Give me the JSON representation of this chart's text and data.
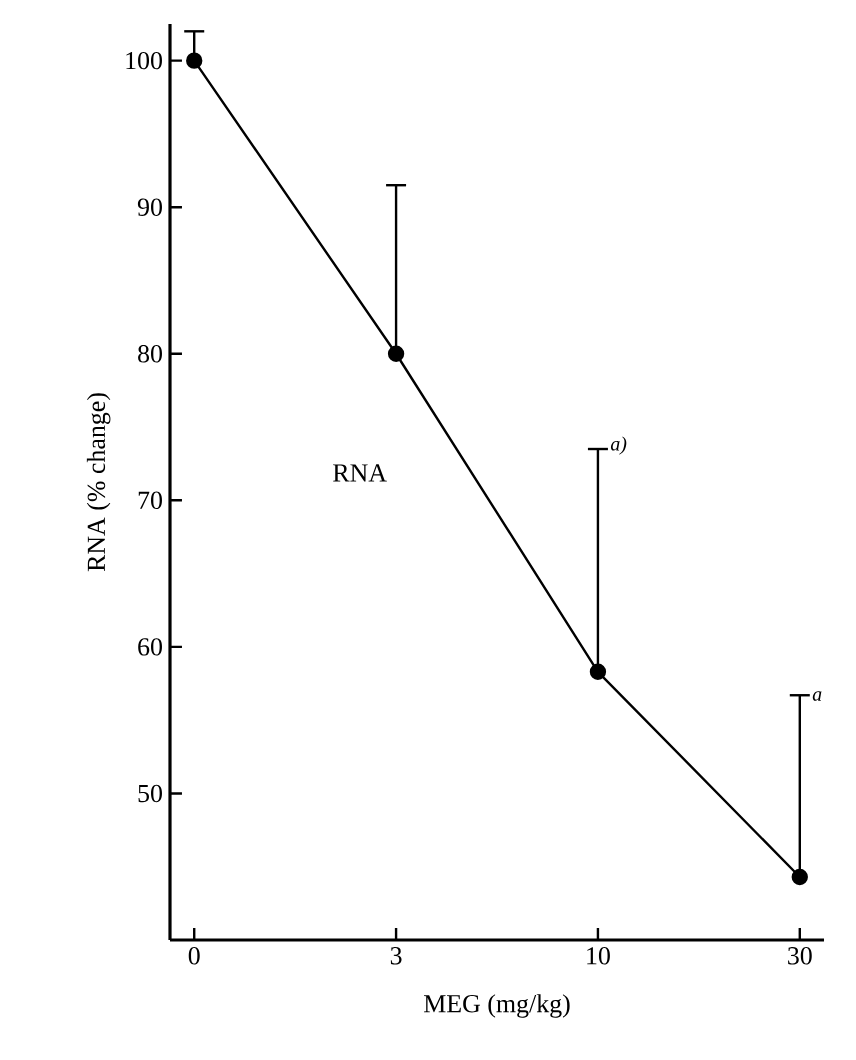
{
  "chart_data": {
    "type": "line",
    "xlabel": "MEG (mg/kg)",
    "ylabel": "RNA (% change)",
    "categories": [
      "0",
      "3",
      "10",
      "30"
    ],
    "series": [
      {
        "name": "RNA",
        "color": "#000000",
        "values": [
          100,
          80,
          58.3,
          44.3
        ],
        "errors": [
          [
            100,
            102
          ],
          [
            80,
            91.5
          ],
          [
            58.3,
            73.5
          ],
          [
            44.3,
            56.7
          ]
        ]
      }
    ],
    "ylim": [
      40,
      102.5
    ],
    "yticks": [
      50,
      60,
      70,
      80,
      90,
      100
    ],
    "marker": "circle",
    "line_style": "solid",
    "legend": false,
    "grid": false,
    "annotations": [
      {
        "text": "a)",
        "x": "10",
        "y": 73.5
      },
      {
        "text": "a",
        "x": "30",
        "y": 56.7
      }
    ]
  }
}
